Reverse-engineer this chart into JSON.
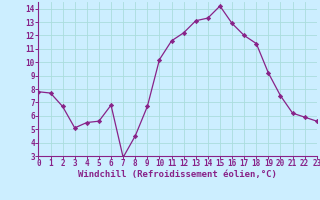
{
  "x": [
    0,
    1,
    2,
    3,
    4,
    5,
    6,
    7,
    8,
    9,
    10,
    11,
    12,
    13,
    14,
    15,
    16,
    17,
    18,
    19,
    20,
    21,
    22,
    23
  ],
  "y": [
    7.8,
    7.7,
    6.7,
    5.1,
    5.5,
    5.6,
    6.8,
    2.9,
    4.5,
    6.7,
    10.2,
    11.6,
    12.2,
    13.1,
    13.3,
    14.2,
    12.9,
    12.0,
    11.4,
    9.2,
    7.5,
    6.2,
    5.9,
    5.6
  ],
  "line_color": "#882288",
  "marker_color": "#882288",
  "bg_color": "#cceeff",
  "grid_color": "#aadddd",
  "xlabel": "Windchill (Refroidissement éolien,°C)",
  "xlabel_color": "#882288",
  "tick_color": "#882288",
  "spine_color": "#882288",
  "ylim": [
    3,
    14.5
  ],
  "xlim": [
    0,
    23
  ],
  "yticks": [
    3,
    4,
    5,
    6,
    7,
    8,
    9,
    10,
    11,
    12,
    13,
    14
  ],
  "xticks": [
    0,
    1,
    2,
    3,
    4,
    5,
    6,
    7,
    8,
    9,
    10,
    11,
    12,
    13,
    14,
    15,
    16,
    17,
    18,
    19,
    20,
    21,
    22,
    23
  ],
  "tick_fontsize": 5.5,
  "xlabel_fontsize": 6.5
}
